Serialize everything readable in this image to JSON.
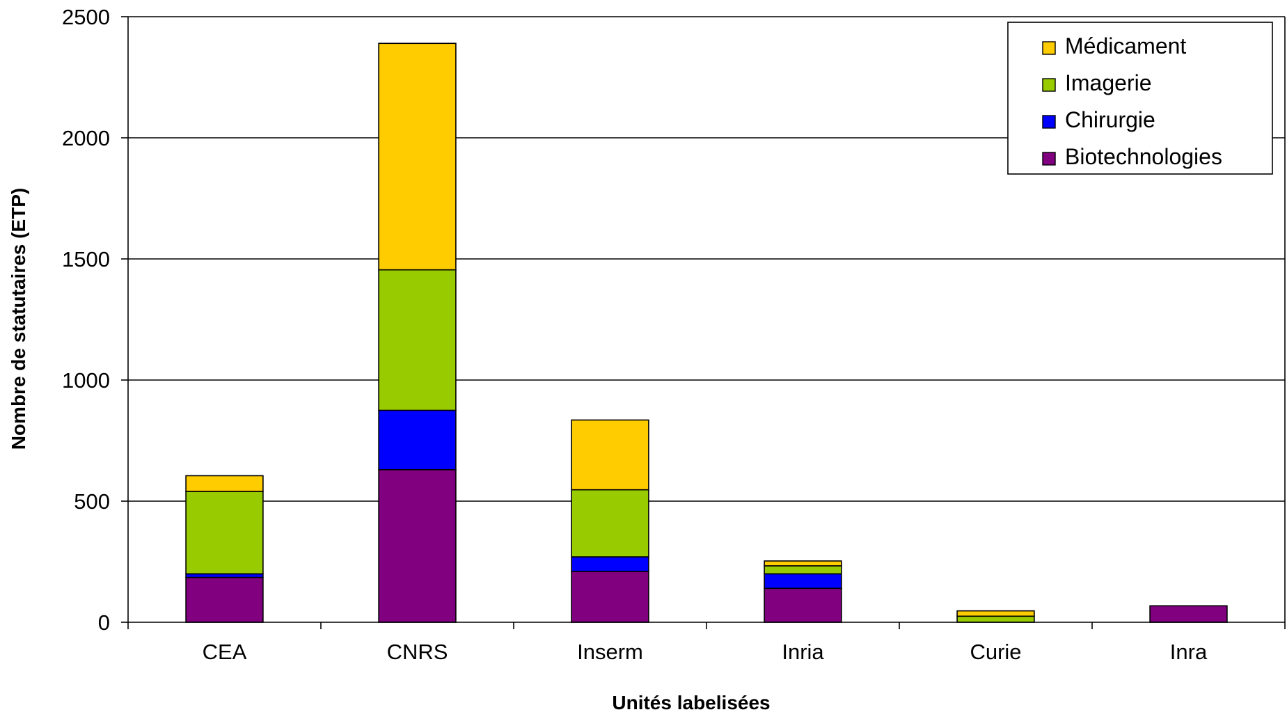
{
  "chart_data": {
    "type": "bar",
    "stacked": true,
    "title": "",
    "xlabel": "Unités labelisées",
    "ylabel": "Nombre de statutaires (ETP)",
    "ylim": [
      0,
      2500
    ],
    "yticks": [
      0,
      500,
      1000,
      1500,
      2000,
      2500
    ],
    "grid": true,
    "legend_position": "top-right",
    "categories": [
      "CEA",
      "CNRS",
      "Inserm",
      "Inria",
      "Curie",
      "Inra"
    ],
    "series": [
      {
        "name": "Biotechnologies",
        "color": "#800080",
        "values": [
          185,
          630,
          210,
          140,
          0,
          68
        ]
      },
      {
        "name": "Chirurgie",
        "color": "#0000ff",
        "values": [
          15,
          245,
          60,
          60,
          0,
          0
        ]
      },
      {
        "name": "Imagerie",
        "color": "#99cc00",
        "values": [
          340,
          580,
          277,
          33,
          25,
          0
        ]
      },
      {
        "name": "Médicament",
        "color": "#ffcc00",
        "values": [
          65,
          935,
          288,
          20,
          22,
          0
        ]
      }
    ],
    "legend_order": [
      "Médicament",
      "Imagerie",
      "Chirurgie",
      "Biotechnologies"
    ]
  }
}
